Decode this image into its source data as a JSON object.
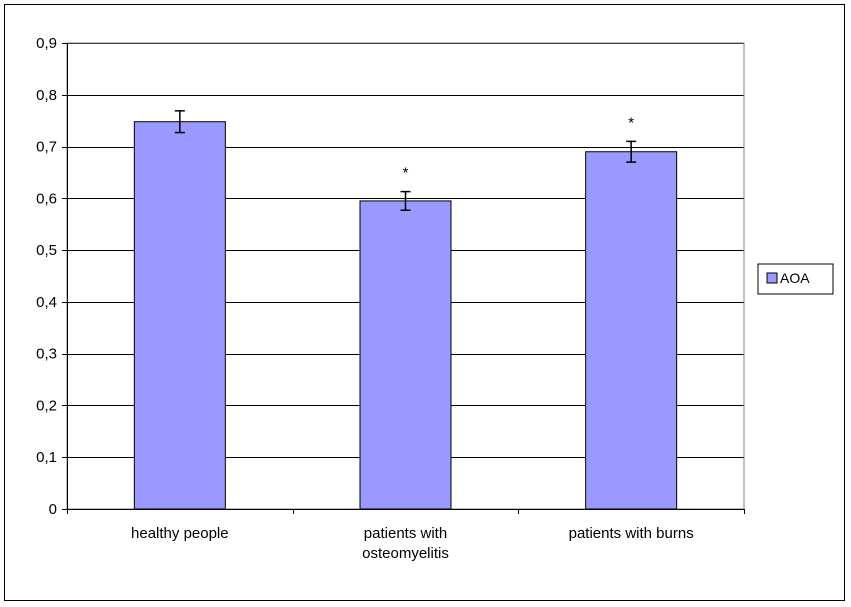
{
  "chart_data": {
    "type": "bar",
    "categories": [
      [
        "healthy people"
      ],
      [
        "patients with",
        "osteomyelitis"
      ],
      [
        "patients with burns"
      ]
    ],
    "series": [
      {
        "name": "AOA",
        "values": [
          0.748,
          0.595,
          0.69
        ],
        "errors": [
          0.021,
          0.018,
          0.02
        ],
        "annotations": [
          "",
          "*",
          "*"
        ]
      }
    ],
    "ylim": [
      0,
      0.9
    ],
    "yticks": [
      "0",
      "0,1",
      "0,2",
      "0,3",
      "0,4",
      "0,5",
      "0,6",
      "0,7",
      "0,8",
      "0,9"
    ],
    "ytick_values": [
      0,
      0.1,
      0.2,
      0.3,
      0.4,
      0.5,
      0.6,
      0.7,
      0.8,
      0.9
    ],
    "grid": true,
    "legend": "right",
    "colors": {
      "bar_fill": "#9999ff",
      "bar_stroke": "#000000",
      "grid": "#000000"
    }
  }
}
